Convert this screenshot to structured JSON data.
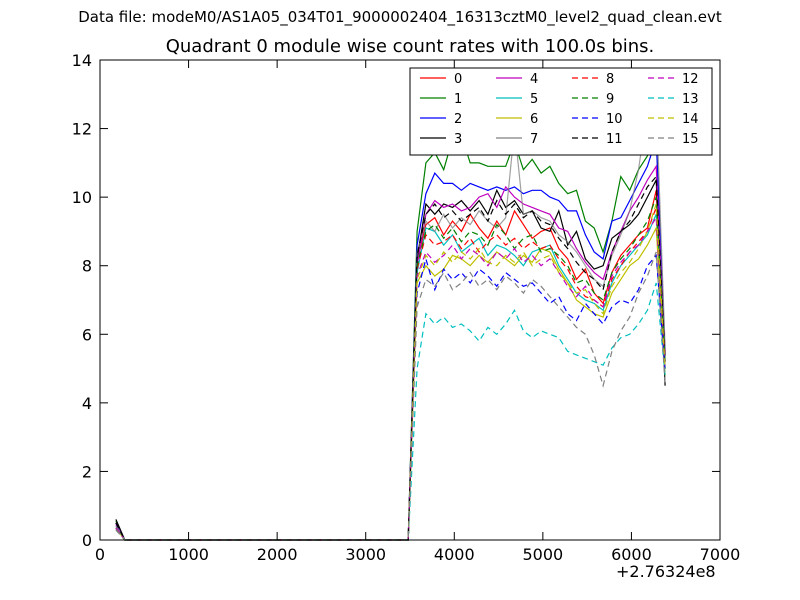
{
  "figure": {
    "suptitle": "Data file: modeM0/AS1A05_034T01_9000002404_16313cztM0_level2_quad_clean.evt",
    "title": "Quadrant 0 module wise count rates with 100.0s bins.",
    "x_offset_label": "+2.76324e8"
  },
  "chart_data": {
    "type": "line",
    "title": "Quadrant 0 module wise count rates with 100.0s bins.",
    "xlabel": "",
    "ylabel": "",
    "xlim": [
      0,
      7000
    ],
    "ylim": [
      0,
      14
    ],
    "x_offset": "+2.76324e8",
    "grid": false,
    "legend_placement": "top-right",
    "legend_columns": 4,
    "xticks": [
      "0",
      "1000",
      "2000",
      "3000",
      "4000",
      "5000",
      "6000",
      "7000"
    ],
    "yticks": [
      "0",
      "2",
      "4",
      "6",
      "8",
      "10",
      "12",
      "14"
    ],
    "x": [
      180,
      280,
      380,
      480,
      580,
      680,
      780,
      880,
      980,
      1080,
      1180,
      1280,
      1380,
      1480,
      1580,
      1680,
      1780,
      1880,
      1980,
      2080,
      2180,
      2280,
      2380,
      2480,
      2580,
      2680,
      2780,
      2880,
      2980,
      3080,
      3180,
      3280,
      3380,
      3480,
      3580,
      3680,
      3780,
      3880,
      3980,
      4080,
      4180,
      4280,
      4380,
      4480,
      4580,
      4680,
      4780,
      4880,
      4980,
      5080,
      5180,
      5280,
      5380,
      5480,
      5580,
      5680,
      5780,
      5880,
      5980,
      6080,
      6180,
      6280,
      6380
    ],
    "series": [
      {
        "name": "0",
        "color": "#ff0000",
        "dash": "solid",
        "values": [
          0.5,
          0,
          0,
          0,
          0,
          0,
          0,
          0,
          0,
          0,
          0,
          0,
          0,
          0,
          0,
          0,
          0,
          0,
          0,
          0,
          0,
          0,
          0,
          0,
          0,
          0,
          0,
          0,
          0,
          0,
          0,
          0,
          0,
          0,
          8.1,
          9.2,
          9.4,
          8.9,
          9.3,
          9.0,
          9.5,
          9.1,
          8.8,
          9.3,
          8.9,
          9.6,
          9.2,
          8.8,
          9.0,
          9.1,
          8.5,
          8.2,
          7.6,
          7.9,
          7.2,
          6.9,
          7.8,
          8.3,
          8.6,
          8.9,
          9.1,
          10.2,
          5.5
        ]
      },
      {
        "name": "1",
        "color": "#008000",
        "dash": "solid",
        "values": [
          0.55,
          0,
          0,
          0,
          0,
          0,
          0,
          0,
          0,
          0,
          0,
          0,
          0,
          0,
          0,
          0,
          0,
          0,
          0,
          0,
          0,
          0,
          0,
          0,
          0,
          0,
          0,
          0,
          0,
          0,
          0,
          0,
          0,
          0,
          9.0,
          11.0,
          11.3,
          10.8,
          11.7,
          11.8,
          11.0,
          11.0,
          10.9,
          10.9,
          10.9,
          11.6,
          10.8,
          11.1,
          10.7,
          10.9,
          10.4,
          10.1,
          10.2,
          9.3,
          9.1,
          8.4,
          9.3,
          10.6,
          10.2,
          10.8,
          11.2,
          11.9,
          5.0
        ]
      },
      {
        "name": "2",
        "color": "#0000ff",
        "dash": "solid",
        "values": [
          0.5,
          0,
          0,
          0,
          0,
          0,
          0,
          0,
          0,
          0,
          0,
          0,
          0,
          0,
          0,
          0,
          0,
          0,
          0,
          0,
          0,
          0,
          0,
          0,
          0,
          0,
          0,
          0,
          0,
          0,
          0,
          0,
          0,
          0,
          8.6,
          10.1,
          10.7,
          10.4,
          10.4,
          10.2,
          10.4,
          10.3,
          10.2,
          10.3,
          10.2,
          10.3,
          10.1,
          10.2,
          10.2,
          10.0,
          9.9,
          9.6,
          9.6,
          8.9,
          8.4,
          8.2,
          9.3,
          9.4,
          9.9,
          10.4,
          10.9,
          11.7,
          5.4
        ]
      },
      {
        "name": "3",
        "color": "#000000",
        "dash": "solid",
        "values": [
          0.6,
          0,
          0,
          0,
          0,
          0,
          0,
          0,
          0,
          0,
          0,
          0,
          0,
          0,
          0,
          0,
          0,
          0,
          0,
          0,
          0,
          0,
          0,
          0,
          0,
          0,
          0,
          0,
          0,
          0,
          0,
          0,
          0,
          0,
          8.2,
          9.8,
          9.5,
          9.8,
          9.7,
          9.9,
          9.6,
          9.9,
          9.5,
          10.2,
          9.7,
          9.9,
          9.5,
          9.6,
          9.1,
          9.0,
          9.6,
          8.6,
          9.0,
          8.2,
          7.9,
          8.0,
          8.8,
          9.0,
          9.2,
          9.5,
          10.0,
          10.5,
          4.5
        ]
      },
      {
        "name": "4",
        "color": "#bf00bf",
        "dash": "solid",
        "values": [
          0.45,
          0,
          0,
          0,
          0,
          0,
          0,
          0,
          0,
          0,
          0,
          0,
          0,
          0,
          0,
          0,
          0,
          0,
          0,
          0,
          0,
          0,
          0,
          0,
          0,
          0,
          0,
          0,
          0,
          0,
          0,
          0,
          0,
          0,
          8.0,
          9.5,
          9.9,
          9.7,
          9.8,
          9.6,
          9.7,
          10.0,
          10.1,
          9.7,
          10.3,
          10.0,
          9.8,
          9.7,
          9.6,
          9.5,
          9.1,
          9.0,
          8.5,
          8.1,
          7.8,
          7.6,
          8.4,
          9.0,
          9.6,
          10.0,
          10.5,
          10.9,
          5.2
        ]
      },
      {
        "name": "5",
        "color": "#00bfbf",
        "dash": "solid",
        "values": [
          0.4,
          0,
          0,
          0,
          0,
          0,
          0,
          0,
          0,
          0,
          0,
          0,
          0,
          0,
          0,
          0,
          0,
          0,
          0,
          0,
          0,
          0,
          0,
          0,
          0,
          0,
          0,
          0,
          0,
          0,
          0,
          0,
          0,
          0,
          7.8,
          9.1,
          9.0,
          8.6,
          8.9,
          8.4,
          8.6,
          8.8,
          8.3,
          8.6,
          8.5,
          8.3,
          8.0,
          8.4,
          8.5,
          8.6,
          8.0,
          7.6,
          7.2,
          7.0,
          6.9,
          6.7,
          7.5,
          8.0,
          8.3,
          8.6,
          8.9,
          9.5,
          5.0
        ]
      },
      {
        "name": "6",
        "color": "#bfbf00",
        "dash": "solid",
        "values": [
          0.35,
          0,
          0,
          0,
          0,
          0,
          0,
          0,
          0,
          0,
          0,
          0,
          0,
          0,
          0,
          0,
          0,
          0,
          0,
          0,
          0,
          0,
          0,
          0,
          0,
          0,
          0,
          0,
          0,
          0,
          0,
          0,
          0,
          0,
          7.5,
          8.0,
          7.7,
          7.9,
          8.3,
          8.2,
          8.0,
          8.3,
          8.1,
          8.4,
          8.2,
          8.0,
          8.3,
          8.1,
          8.5,
          8.4,
          7.9,
          7.5,
          7.0,
          6.8,
          6.6,
          6.5,
          7.2,
          7.6,
          8.0,
          8.2,
          8.6,
          9.1,
          4.8
        ]
      },
      {
        "name": "7",
        "color": "#808080",
        "dash": "solid",
        "values": [
          0.4,
          0,
          0,
          0,
          0,
          0,
          0,
          0,
          0,
          0,
          0,
          0,
          0,
          0,
          0,
          0,
          0,
          0,
          0,
          0,
          0,
          0,
          0,
          0,
          0,
          0,
          0,
          0,
          0,
          0,
          0,
          0,
          0,
          0,
          8.4,
          9.3,
          9.0,
          9.5,
          9.1,
          9.4,
          9.2,
          9.6,
          9.3,
          9.1,
          9.4,
          12.0,
          9.5,
          9.6,
          9.4,
          9.3,
          8.9,
          8.7,
          8.4,
          8.0,
          7.6,
          7.4,
          8.3,
          8.9,
          9.6,
          10.8,
          12.6,
          12.8,
          5.6
        ]
      },
      {
        "name": "8",
        "color": "#ff0000",
        "dash": "dashed",
        "values": [
          0.35,
          0,
          0,
          0,
          0,
          0,
          0,
          0,
          0,
          0,
          0,
          0,
          0,
          0,
          0,
          0,
          0,
          0,
          0,
          0,
          0,
          0,
          0,
          0,
          0,
          0,
          0,
          0,
          0,
          0,
          0,
          0,
          0,
          0,
          7.9,
          8.9,
          8.6,
          8.7,
          8.9,
          8.5,
          8.8,
          8.4,
          8.7,
          8.9,
          8.6,
          8.8,
          8.5,
          8.7,
          8.5,
          8.6,
          8.2,
          7.9,
          7.4,
          7.1,
          7.0,
          6.8,
          7.6,
          8.0,
          8.4,
          8.7,
          9.0,
          9.7,
          5.3
        ]
      },
      {
        "name": "9",
        "color": "#008000",
        "dash": "dashed",
        "values": [
          0.3,
          0,
          0,
          0,
          0,
          0,
          0,
          0,
          0,
          0,
          0,
          0,
          0,
          0,
          0,
          0,
          0,
          0,
          0,
          0,
          0,
          0,
          0,
          0,
          0,
          0,
          0,
          0,
          0,
          0,
          0,
          0,
          0,
          0,
          8.0,
          9.0,
          9.2,
          8.8,
          9.1,
          8.7,
          9.0,
          8.9,
          8.6,
          9.2,
          8.9,
          8.5,
          8.8,
          8.9,
          8.4,
          8.5,
          8.3,
          8.0,
          7.5,
          7.6,
          7.2,
          7.0,
          7.8,
          8.2,
          8.5,
          8.9,
          9.3,
          10.0,
          5.2
        ]
      },
      {
        "name": "10",
        "color": "#0000ff",
        "dash": "dashed",
        "values": [
          0.3,
          0,
          0,
          0,
          0,
          0,
          0,
          0,
          0,
          0,
          0,
          0,
          0,
          0,
          0,
          0,
          0,
          0,
          0,
          0,
          0,
          0,
          0,
          0,
          0,
          0,
          0,
          0,
          0,
          0,
          0,
          0,
          0,
          0,
          7.2,
          8.2,
          7.3,
          7.9,
          7.6,
          7.8,
          7.5,
          7.9,
          7.7,
          7.4,
          7.8,
          7.6,
          7.4,
          7.5,
          7.2,
          6.9,
          7.1,
          6.6,
          6.4,
          6.9,
          6.6,
          6.3,
          6.8,
          7.0,
          6.9,
          7.3,
          8.0,
          8.3,
          4.9
        ]
      },
      {
        "name": "11",
        "color": "#000000",
        "dash": "dashed",
        "values": [
          0.5,
          0,
          0,
          0,
          0,
          0,
          0,
          0,
          0,
          0,
          0,
          0,
          0,
          0,
          0,
          0,
          0,
          0,
          0,
          0,
          0,
          0,
          0,
          0,
          0,
          0,
          0,
          0,
          0,
          0,
          0,
          0,
          0,
          0,
          8.3,
          9.5,
          9.8,
          9.4,
          9.6,
          9.3,
          9.5,
          9.7,
          9.3,
          9.9,
          9.5,
          9.8,
          9.4,
          9.6,
          9.3,
          9.2,
          8.8,
          8.5,
          8.1,
          7.8,
          7.6,
          7.3,
          8.4,
          9.0,
          9.3,
          9.8,
          10.3,
          10.6,
          5.2
        ]
      },
      {
        "name": "12",
        "color": "#bf00bf",
        "dash": "dashed",
        "values": [
          0.35,
          0,
          0,
          0,
          0,
          0,
          0,
          0,
          0,
          0,
          0,
          0,
          0,
          0,
          0,
          0,
          0,
          0,
          0,
          0,
          0,
          0,
          0,
          0,
          0,
          0,
          0,
          0,
          0,
          0,
          0,
          0,
          0,
          0,
          7.7,
          8.4,
          8.1,
          8.3,
          8.6,
          8.2,
          8.5,
          8.3,
          8.0,
          8.4,
          8.2,
          8.5,
          8.1,
          8.3,
          8.0,
          8.2,
          7.8,
          7.4,
          7.1,
          7.4,
          7.0,
          6.8,
          7.7,
          8.1,
          8.4,
          8.6,
          9.0,
          9.4,
          5.0
        ]
      },
      {
        "name": "13",
        "color": "#00bfbf",
        "dash": "dashed",
        "values": [
          0.3,
          0,
          0,
          0,
          0,
          0,
          0,
          0,
          0,
          0,
          0,
          0,
          0,
          0,
          0,
          0,
          0,
          0,
          0,
          0,
          0,
          0,
          0,
          0,
          0,
          0,
          0,
          0,
          0,
          0,
          0,
          0,
          0,
          0,
          5.0,
          6.6,
          6.3,
          6.5,
          6.2,
          6.3,
          6.1,
          5.8,
          6.2,
          6.0,
          6.3,
          6.7,
          6.1,
          5.9,
          6.1,
          6.0,
          5.9,
          5.5,
          5.4,
          5.3,
          5.2,
          5.1,
          5.6,
          5.9,
          6.0,
          6.3,
          6.7,
          7.5,
          4.8
        ]
      },
      {
        "name": "14",
        "color": "#bfbf00",
        "dash": "dashed",
        "values": [
          0.3,
          0,
          0,
          0,
          0,
          0,
          0,
          0,
          0,
          0,
          0,
          0,
          0,
          0,
          0,
          0,
          0,
          0,
          0,
          0,
          0,
          0,
          0,
          0,
          0,
          0,
          0,
          0,
          0,
          0,
          0,
          0,
          0,
          0,
          7.6,
          8.3,
          8.0,
          8.4,
          8.1,
          8.4,
          8.2,
          8.5,
          8.1,
          8.0,
          8.3,
          8.1,
          8.4,
          8.0,
          8.2,
          8.3,
          7.8,
          7.5,
          7.2,
          7.3,
          6.9,
          6.6,
          7.4,
          7.8,
          8.1,
          8.5,
          9.0,
          9.8,
          5.0
        ]
      },
      {
        "name": "15",
        "color": "#808080",
        "dash": "dashed",
        "values": [
          0.3,
          0,
          0,
          0,
          0,
          0,
          0,
          0,
          0,
          0,
          0,
          0,
          0,
          0,
          0,
          0,
          0,
          0,
          0,
          0,
          0,
          0,
          0,
          0,
          0,
          0,
          0,
          0,
          0,
          0,
          0,
          0,
          0,
          0,
          6.8,
          7.6,
          7.4,
          7.8,
          7.3,
          7.5,
          7.8,
          7.4,
          7.6,
          7.3,
          7.7,
          7.5,
          7.2,
          7.6,
          7.4,
          7.1,
          6.8,
          6.5,
          6.2,
          6.0,
          5.4,
          4.5,
          5.5,
          6.1,
          6.5,
          7.2,
          7.7,
          8.4,
          4.6
        ]
      }
    ]
  }
}
